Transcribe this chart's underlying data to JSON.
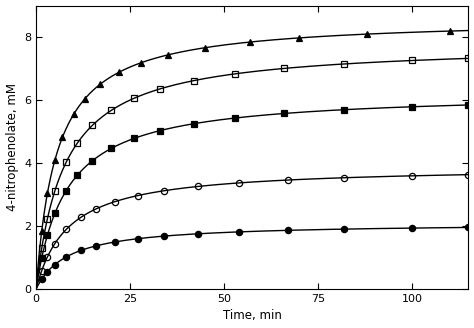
{
  "title": "",
  "xlabel": "Time, min",
  "ylabel": "4-nitrophenolate, mM",
  "xlim": [
    0,
    115
  ],
  "ylim": [
    0,
    9
  ],
  "yticks": [
    0,
    2,
    4,
    6,
    8
  ],
  "xticks": [
    0,
    25,
    50,
    75,
    100
  ],
  "curves": [
    {
      "label": "filled_triangle",
      "Vmax": 8.6,
      "km": 5.5,
      "marker": "^",
      "fillstyle": "full",
      "color": "black",
      "markersize": 4.5,
      "data_t": [
        1.5,
        3,
        5,
        7,
        10,
        13,
        17,
        22,
        28,
        35,
        45,
        57,
        70,
        88,
        110
      ]
    },
    {
      "label": "open_square",
      "Vmax": 7.8,
      "km": 7.5,
      "marker": "s",
      "fillstyle": "none",
      "color": "black",
      "markersize": 4.5,
      "data_t": [
        1.5,
        3,
        5,
        8,
        11,
        15,
        20,
        26,
        33,
        42,
        53,
        66,
        82,
        100,
        115
      ]
    },
    {
      "label": "filled_square",
      "Vmax": 6.25,
      "km": 8.0,
      "marker": "s",
      "fillstyle": "full",
      "color": "black",
      "markersize": 4.5,
      "data_t": [
        1.5,
        3,
        5,
        8,
        11,
        15,
        20,
        26,
        33,
        42,
        53,
        66,
        82,
        100,
        115
      ]
    },
    {
      "label": "open_circle",
      "Vmax": 3.9,
      "km": 8.5,
      "marker": "o",
      "fillstyle": "none",
      "color": "black",
      "markersize": 4.5,
      "data_t": [
        1.5,
        3,
        5,
        8,
        12,
        16,
        21,
        27,
        34,
        43,
        54,
        67,
        82,
        100,
        115
      ]
    },
    {
      "label": "filled_circle",
      "Vmax": 2.1,
      "km": 8.5,
      "marker": "o",
      "fillstyle": "full",
      "color": "black",
      "markersize": 4.5,
      "data_t": [
        1.5,
        3,
        5,
        8,
        12,
        16,
        21,
        27,
        34,
        43,
        54,
        67,
        82,
        100,
        115
      ]
    }
  ],
  "background_color": "#ffffff",
  "linewidth": 1.0,
  "fontsize_label": 8.5,
  "fontsize_tick": 8
}
